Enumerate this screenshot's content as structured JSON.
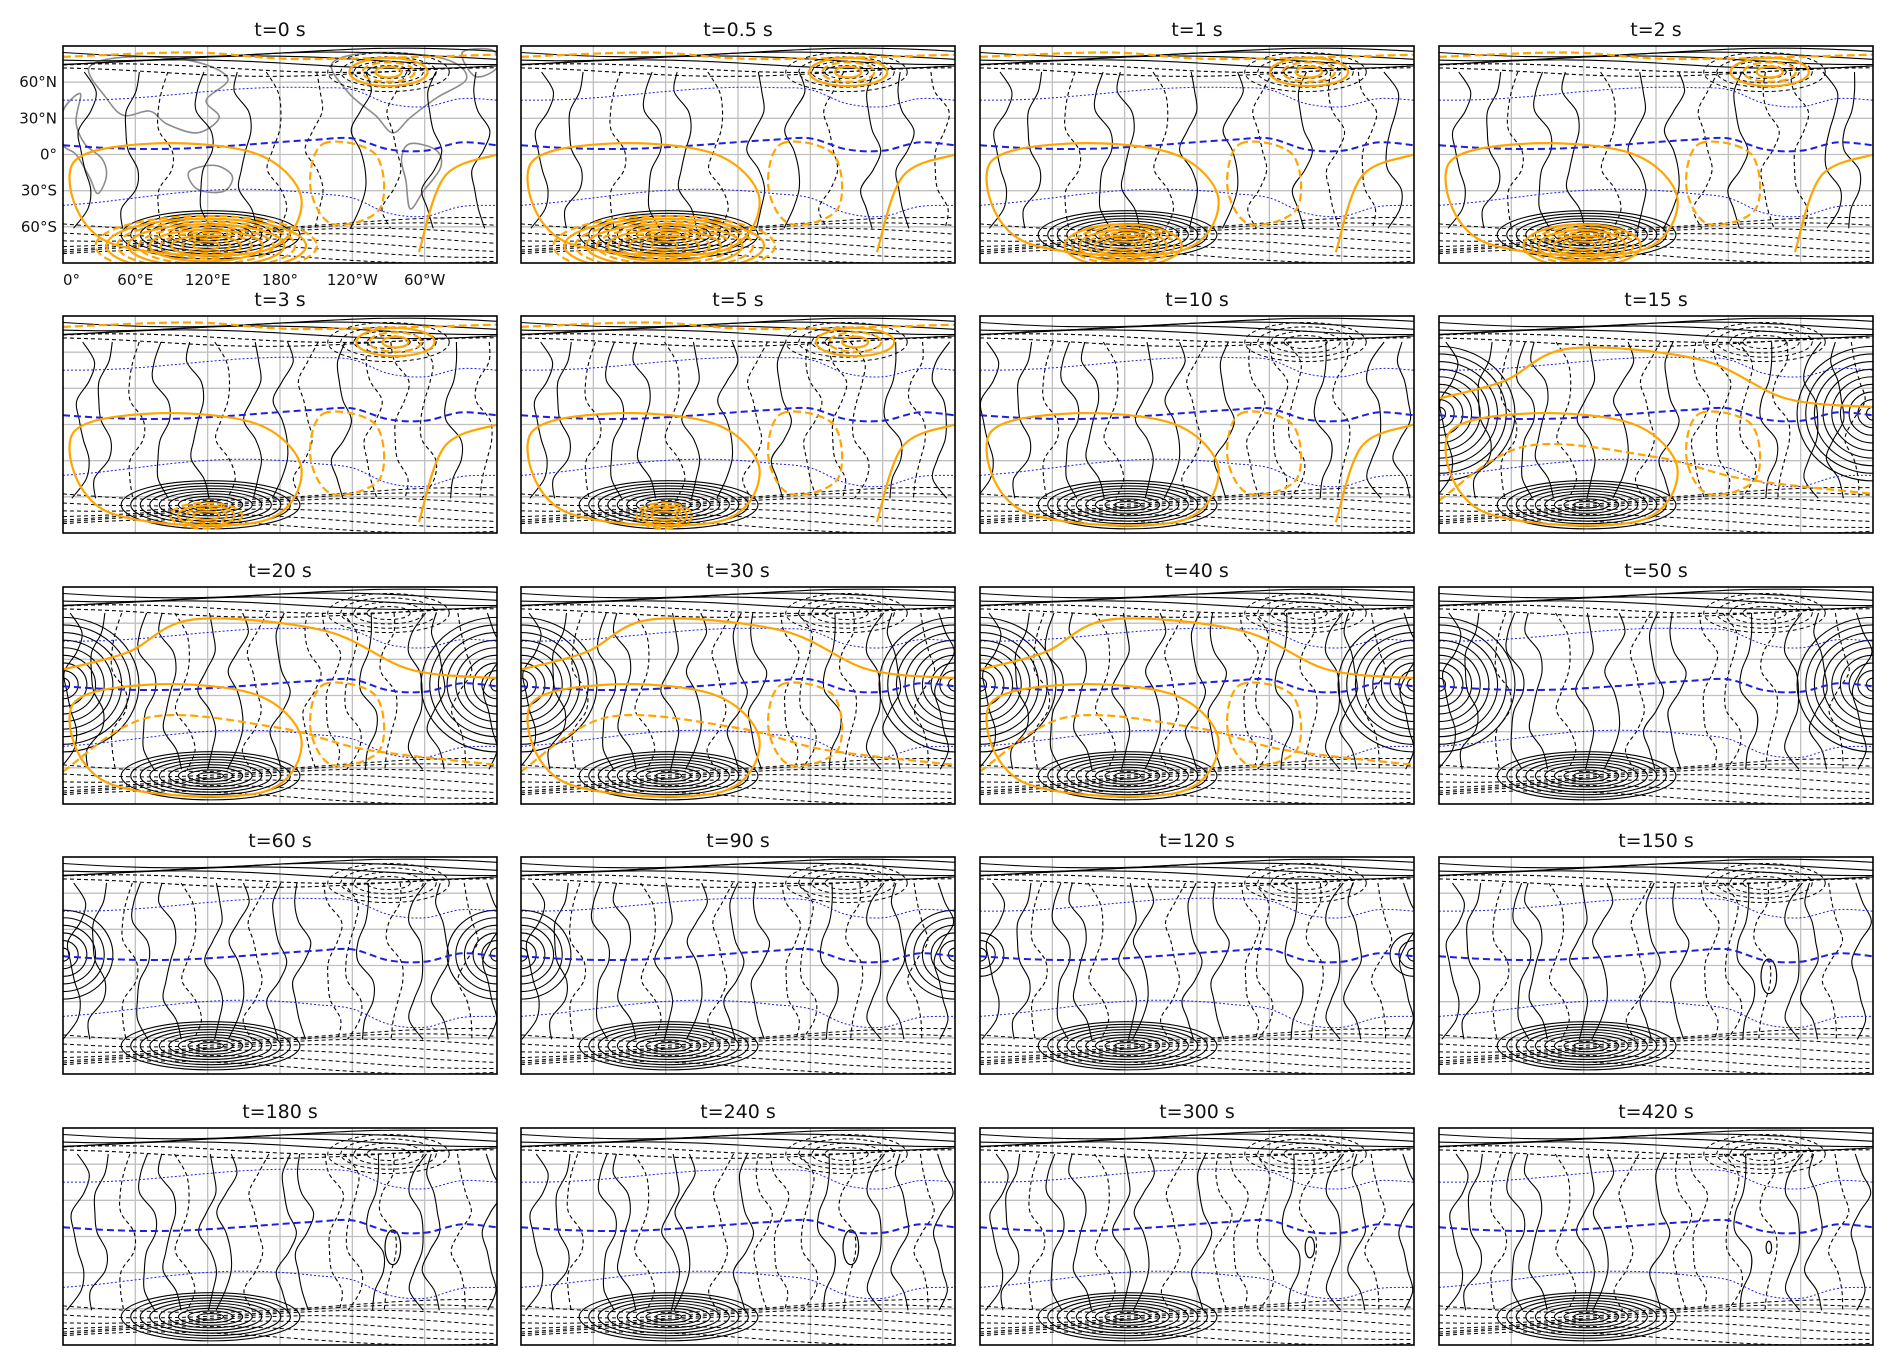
{
  "figure": {
    "panels": [
      {
        "title": "t=0 s",
        "stage": 0
      },
      {
        "title": "t=0.5 s",
        "stage": 1
      },
      {
        "title": "t=1 s",
        "stage": 2
      },
      {
        "title": "t=2 s",
        "stage": 3
      },
      {
        "title": "t=3 s",
        "stage": 4
      },
      {
        "title": "t=5 s",
        "stage": 5
      },
      {
        "title": "t=10 s",
        "stage": 6
      },
      {
        "title": "t=15 s",
        "stage": 7
      },
      {
        "title": "t=20 s",
        "stage": 8
      },
      {
        "title": "t=30 s",
        "stage": 9
      },
      {
        "title": "t=40 s",
        "stage": 10
      },
      {
        "title": "t=50 s",
        "stage": 11
      },
      {
        "title": "t=60 s",
        "stage": 12
      },
      {
        "title": "t=90 s",
        "stage": 13
      },
      {
        "title": "t=120 s",
        "stage": 14
      },
      {
        "title": "t=150 s",
        "stage": 15
      },
      {
        "title": "t=180 s",
        "stage": 16
      },
      {
        "title": "t=240 s",
        "stage": 17
      },
      {
        "title": "t=300 s",
        "stage": 18
      },
      {
        "title": "t=420 s",
        "stage": 19
      }
    ],
    "lat_ticks": [
      "60°N",
      "30°N",
      "0°",
      "30°S",
      "60°S"
    ],
    "lon_ticks": [
      "0°",
      "60°E",
      "120°E",
      "180°",
      "120°W",
      "60°W"
    ],
    "colors": {
      "orange_contours": "#ffa500",
      "black_contours": "#000000",
      "blue_contours": "#1f1fe0",
      "gridlines": "#c0c0c0",
      "coastlines": "#8c8c8c"
    }
  }
}
